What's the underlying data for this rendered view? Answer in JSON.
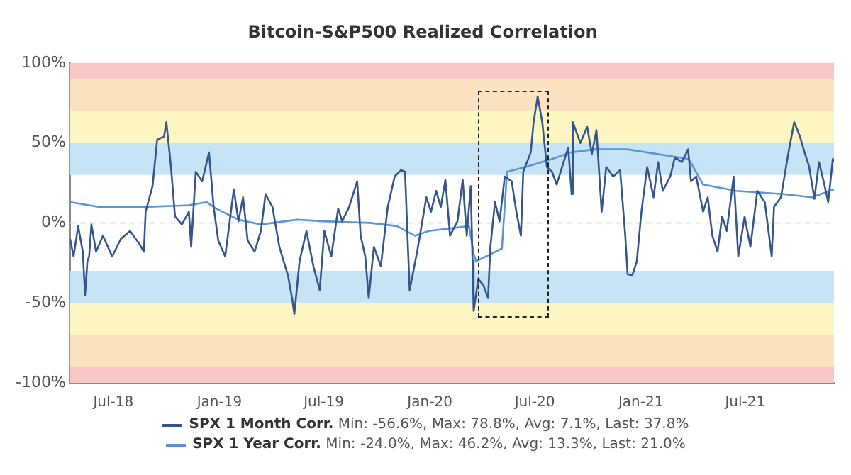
{
  "chart_data": {
    "type": "line",
    "title": "Bitcoin-S&P500 Realized Correlation",
    "xlim": [
      "2018-04-17",
      "2021-12-02"
    ],
    "xticks": [
      {
        "value": "2018-07-01",
        "label": "Jul-18"
      },
      {
        "value": "2019-01-01",
        "label": "Jan-19"
      },
      {
        "value": "2019-07-01",
        "label": "Jul-19"
      },
      {
        "value": "2020-01-01",
        "label": "Jan-20"
      },
      {
        "value": "2020-07-01",
        "label": "Jul-20"
      },
      {
        "value": "2021-01-01",
        "label": "Jan-21"
      },
      {
        "value": "2021-07-01",
        "label": "Jul-21"
      }
    ],
    "ylim": [
      -100,
      100
    ],
    "yticks": [
      {
        "value": -100,
        "label": "-100%"
      },
      {
        "value": -50,
        "label": "-50%"
      },
      {
        "value": 0,
        "label": "0%"
      },
      {
        "value": 50,
        "label": "50%"
      },
      {
        "value": 100,
        "label": "100%"
      }
    ],
    "grid": false,
    "legend": "bottom",
    "marker": "none",
    "line_style": "solid",
    "bands": [
      {
        "axis": "y",
        "from": 90,
        "to": 100,
        "color": "#f9c6c6"
      },
      {
        "axis": "y",
        "from": 70,
        "to": 90,
        "color": "#fbe2c0"
      },
      {
        "axis": "y",
        "from": 50,
        "to": 70,
        "color": "#fdf5c2"
      },
      {
        "axis": "y",
        "from": 30,
        "to": 50,
        "color": "#c6e4f6"
      },
      {
        "axis": "y",
        "from": -50,
        "to": -30,
        "color": "#c6e4f6"
      },
      {
        "axis": "y",
        "from": -70,
        "to": -50,
        "color": "#fdf5c2"
      },
      {
        "axis": "y",
        "from": -90,
        "to": -70,
        "color": "#fbe2c0"
      },
      {
        "axis": "y",
        "from": -100,
        "to": -90,
        "color": "#f9c6c6"
      }
    ],
    "ref_lines": [
      {
        "axis": "y",
        "value": 0,
        "color": "#dddddd",
        "line_style": "dashed"
      }
    ],
    "annotations": [
      "Min: -56.6%, Max: 78.8%, Avg: 7.1%, Last: 37.8%",
      "Min: -24.0%, Max: 46.2%, Avg: 13.3%, Last: 21.0%"
    ],
    "series": [
      {
        "name": "SPX 1 Month Corr.",
        "color": "#33568f",
        "x": [
          "2018-04-17",
          "2018-04-23",
          "2018-05-01",
          "2018-05-09",
          "2018-05-13",
          "2018-05-17",
          "2018-05-20",
          "2018-05-24",
          "2018-06-01",
          "2018-06-13",
          "2018-06-29",
          "2018-07-14",
          "2018-07-30",
          "2018-08-15",
          "2018-08-23",
          "2018-08-26",
          "2018-09-07",
          "2018-09-15",
          "2018-09-27",
          "2018-10-01",
          "2018-10-09",
          "2018-10-16",
          "2018-10-28",
          "2018-11-09",
          "2018-11-13",
          "2018-11-21",
          "2018-12-02",
          "2018-12-14",
          "2018-12-22",
          "2018-12-30",
          "2019-01-11",
          "2019-01-26",
          "2019-02-03",
          "2019-02-11",
          "2019-02-19",
          "2019-03-03",
          "2019-03-14",
          "2019-03-22",
          "2019-04-03",
          "2019-04-15",
          "2019-04-30",
          "2019-05-07",
          "2019-05-11",
          "2019-05-20",
          "2019-06-01",
          "2019-06-13",
          "2019-06-24",
          "2019-07-02",
          "2019-07-14",
          "2019-07-26",
          "2019-08-02",
          "2019-08-14",
          "2019-08-28",
          "2019-09-03",
          "2019-09-11",
          "2019-09-17",
          "2019-09-26",
          "2019-10-08",
          "2019-10-20",
          "2019-11-01",
          "2019-11-12",
          "2019-11-19",
          "2019-11-24",
          "2019-11-27",
          "2019-12-10",
          "2019-12-26",
          "2020-01-03",
          "2020-01-12",
          "2020-01-20",
          "2020-01-28",
          "2020-02-05",
          "2020-02-18",
          "2020-02-27",
          "2020-03-05",
          "2020-03-12",
          "2020-03-15",
          "2020-03-17",
          "2020-03-25",
          "2020-04-03",
          "2020-04-11",
          "2020-04-15",
          "2020-04-23",
          "2020-05-01",
          "2020-05-10",
          "2020-05-22",
          "2020-05-30",
          "2020-06-07",
          "2020-06-11",
          "2020-06-24",
          "2020-06-29",
          "2020-07-06",
          "2020-07-14",
          "2020-07-22",
          "2020-07-31",
          "2020-08-08",
          "2020-08-20",
          "2020-08-28",
          "2020-09-03",
          "2020-09-05",
          "2020-09-18",
          "2020-09-30",
          "2020-10-08",
          "2020-10-16",
          "2020-10-25",
          "2020-11-02",
          "2020-11-14",
          "2020-11-26",
          "2020-12-05",
          "2020-12-09",
          "2020-12-17",
          "2020-12-25",
          "2021-01-02",
          "2021-01-12",
          "2021-01-23",
          "2021-01-31",
          "2021-02-08",
          "2021-02-21",
          "2021-03-01",
          "2021-03-13",
          "2021-03-24",
          "2021-03-29",
          "2021-04-07",
          "2021-04-19",
          "2021-04-27",
          "2021-05-05",
          "2021-05-14",
          "2021-05-22",
          "2021-05-30",
          "2021-06-11",
          "2021-06-19",
          "2021-06-30",
          "2021-07-10",
          "2021-07-22",
          "2021-08-04",
          "2021-08-16",
          "2021-08-20",
          "2021-09-01",
          "2021-09-14",
          "2021-09-24",
          "2021-10-04",
          "2021-10-12",
          "2021-10-20",
          "2021-10-29",
          "2021-11-06",
          "2021-11-14",
          "2021-11-22",
          "2021-11-30",
          "2021-12-02"
        ],
        "values": [
          -10,
          -21,
          -2,
          -18,
          -45,
          -24,
          -21,
          -1,
          -18,
          -8,
          -21,
          -10,
          -5,
          -13,
          -18,
          7,
          23,
          52,
          54,
          63,
          35,
          4,
          -1,
          7,
          -15,
          32,
          26,
          44,
          10,
          -11,
          -21,
          21,
          1,
          16,
          -11,
          -18,
          -5,
          18,
          10,
          -15,
          -33,
          -47,
          -57,
          -24,
          -5,
          -27,
          -42,
          -5,
          -21,
          9,
          1,
          10,
          26,
          -8,
          -21,
          -47,
          -15,
          -27,
          10,
          29,
          33,
          32,
          -15,
          -42,
          -18,
          16,
          7,
          20,
          10,
          27,
          -8,
          1,
          27,
          -8,
          23,
          -24,
          -55,
          -35,
          -39,
          -47,
          -15,
          13,
          1,
          29,
          26,
          7,
          -8,
          32,
          44,
          63,
          79,
          63,
          35,
          32,
          24,
          38,
          47,
          18,
          63,
          50,
          60,
          43,
          58,
          7,
          35,
          29,
          33,
          -8,
          -32,
          -33,
          -24,
          7,
          35,
          16,
          38,
          20,
          29,
          41,
          38,
          46,
          26,
          29,
          7,
          16,
          -8,
          -18,
          4,
          -5,
          29,
          -21,
          4,
          -15,
          20,
          13,
          -21,
          10,
          16,
          44,
          63,
          54,
          44,
          35,
          15,
          38,
          26,
          13,
          40,
          38
        ]
      },
      {
        "name": "SPX 1 Year Corr.",
        "color": "#5b95d8",
        "x": [
          "2018-04-17",
          "2018-06-05",
          "2018-08-23",
          "2018-11-09",
          "2018-12-10",
          "2018-12-26",
          "2019-02-03",
          "2019-03-14",
          "2019-05-16",
          "2019-07-02",
          "2019-09-19",
          "2019-11-05",
          "2019-12-06",
          "2019-12-30",
          "2020-03-09",
          "2020-03-17",
          "2020-03-21",
          "2020-05-05",
          "2020-05-14",
          "2020-06-15",
          "2020-07-31",
          "2020-09-01",
          "2020-10-12",
          "2020-12-09",
          "2021-03-25",
          "2021-04-19",
          "2021-06-15",
          "2021-09-05",
          "2021-10-25",
          "2021-12-02"
        ],
        "values": [
          13,
          10,
          10,
          11,
          13,
          9,
          2,
          -1,
          2,
          1,
          0,
          -2,
          -8,
          -5,
          -2,
          -19,
          -24.0,
          -16,
          32,
          35,
          40,
          44,
          46,
          46,
          40,
          24,
          20,
          18,
          16,
          21.0
        ]
      }
    ]
  }
}
